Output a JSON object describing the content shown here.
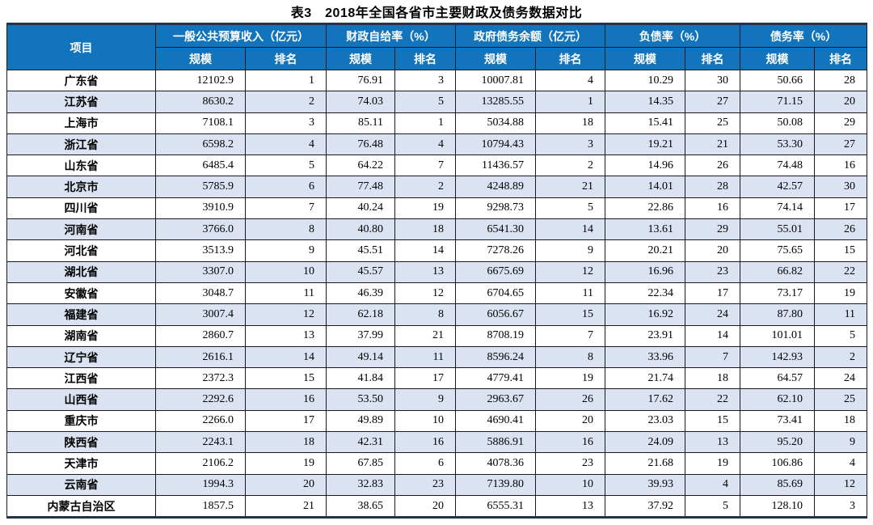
{
  "title": "表3　2018年全国各省市主要财政及债务数据对比",
  "colors": {
    "header_bg": "#1274bc",
    "stripe_row_bg": "#dbe3f2",
    "thick_border": "#23324f",
    "thin_border": "#1a1a1a",
    "header_text": "#ffffff",
    "body_text": "#000000"
  },
  "table": {
    "project_header": "项目",
    "scale_label": "规模",
    "rank_label": "排名",
    "groups": [
      {
        "label": "一般公共预算收入（亿元）"
      },
      {
        "label": "财政自给率（%）"
      },
      {
        "label": "政府债务余额（亿元）"
      },
      {
        "label": "负债率（%）"
      },
      {
        "label": "债务率（%）"
      }
    ],
    "rows": [
      [
        "广东省",
        "12102.9",
        "1",
        "76.91",
        "3",
        "10007.81",
        "4",
        "10.29",
        "30",
        "50.66",
        "28"
      ],
      [
        "江苏省",
        "8630.2",
        "2",
        "74.03",
        "5",
        "13285.55",
        "1",
        "14.35",
        "27",
        "71.15",
        "20"
      ],
      [
        "上海市",
        "7108.1",
        "3",
        "85.11",
        "1",
        "5034.88",
        "18",
        "15.41",
        "25",
        "50.08",
        "29"
      ],
      [
        "浙江省",
        "6598.2",
        "4",
        "76.48",
        "4",
        "10794.43",
        "3",
        "19.21",
        "21",
        "53.30",
        "27"
      ],
      [
        "山东省",
        "6485.4",
        "5",
        "64.22",
        "7",
        "11436.57",
        "2",
        "14.96",
        "26",
        "74.48",
        "16"
      ],
      [
        "北京市",
        "5785.9",
        "6",
        "77.48",
        "2",
        "4248.89",
        "21",
        "14.01",
        "28",
        "42.57",
        "30"
      ],
      [
        "四川省",
        "3910.9",
        "7",
        "40.24",
        "19",
        "9298.73",
        "5",
        "22.86",
        "16",
        "74.14",
        "17"
      ],
      [
        "河南省",
        "3766.0",
        "8",
        "40.80",
        "18",
        "6541.30",
        "14",
        "13.61",
        "29",
        "55.01",
        "26"
      ],
      [
        "河北省",
        "3513.9",
        "9",
        "45.51",
        "14",
        "7278.26",
        "9",
        "20.21",
        "20",
        "75.65",
        "15"
      ],
      [
        "湖北省",
        "3307.0",
        "10",
        "45.57",
        "13",
        "6675.69",
        "12",
        "16.96",
        "23",
        "66.82",
        "22"
      ],
      [
        "安徽省",
        "3048.7",
        "11",
        "46.39",
        "12",
        "6704.65",
        "11",
        "22.34",
        "17",
        "73.17",
        "19"
      ],
      [
        "福建省",
        "3007.4",
        "12",
        "62.18",
        "8",
        "6056.67",
        "15",
        "16.92",
        "24",
        "87.80",
        "11"
      ],
      [
        "湖南省",
        "2860.7",
        "13",
        "37.99",
        "21",
        "8708.19",
        "7",
        "23.91",
        "14",
        "101.01",
        "5"
      ],
      [
        "辽宁省",
        "2616.1",
        "14",
        "49.14",
        "11",
        "8596.24",
        "8",
        "33.96",
        "7",
        "142.93",
        "2"
      ],
      [
        "江西省",
        "2372.3",
        "15",
        "41.84",
        "17",
        "4779.41",
        "19",
        "21.74",
        "18",
        "64.57",
        "24"
      ],
      [
        "山西省",
        "2292.6",
        "16",
        "53.50",
        "9",
        "2963.67",
        "26",
        "17.62",
        "22",
        "62.10",
        "25"
      ],
      [
        "重庆市",
        "2266.0",
        "17",
        "49.89",
        "10",
        "4690.41",
        "20",
        "23.03",
        "15",
        "73.41",
        "18"
      ],
      [
        "陕西省",
        "2243.1",
        "18",
        "42.31",
        "16",
        "5886.91",
        "16",
        "24.09",
        "13",
        "95.20",
        "9"
      ],
      [
        "天津市",
        "2106.2",
        "19",
        "67.85",
        "6",
        "4078.36",
        "23",
        "21.68",
        "19",
        "106.86",
        "4"
      ],
      [
        "云南省",
        "1994.3",
        "20",
        "32.83",
        "23",
        "7139.80",
        "10",
        "39.93",
        "4",
        "85.69",
        "12"
      ],
      [
        "内蒙古自治区",
        "1857.5",
        "21",
        "38.65",
        "20",
        "6555.31",
        "13",
        "37.92",
        "5",
        "128.10",
        "3"
      ]
    ]
  }
}
